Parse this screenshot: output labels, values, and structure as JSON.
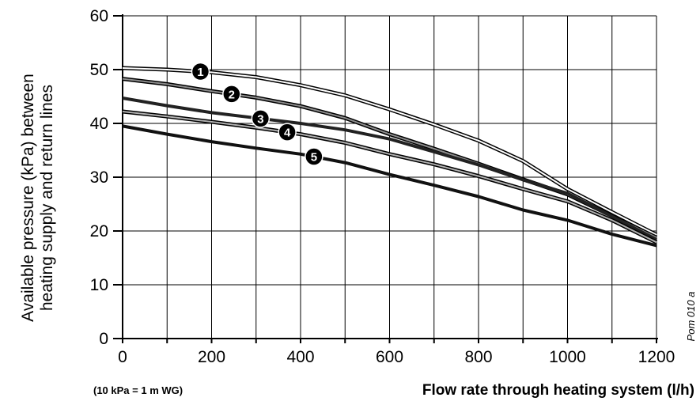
{
  "chart_data": {
    "type": "line",
    "title": "",
    "xlabel": "Flow rate through heating system (l/h)",
    "ylabel_lines": [
      "Available pressure (kPa) between",
      "heating supply and return lines"
    ],
    "note": "(10 kPa = 1 m WG)",
    "reference": "Pom 010 a",
    "xlim": [
      0,
      1200
    ],
    "ylim": [
      0,
      60
    ],
    "grid": true,
    "x_ticks": [
      0,
      200,
      400,
      600,
      800,
      1000,
      1200
    ],
    "y_ticks": [
      0,
      10,
      20,
      30,
      40,
      50,
      60
    ],
    "x": [
      0,
      100,
      200,
      300,
      400,
      500,
      600,
      700,
      800,
      900,
      1000,
      1100,
      1200
    ],
    "series": [
      {
        "marker": "1",
        "values": [
          50.3,
          50.0,
          49.5,
          48.6,
          47.1,
          45.2,
          42.6,
          39.8,
          36.8,
          33.0,
          27.8,
          23.5,
          19.3
        ]
      },
      {
        "marker": "2",
        "values": [
          48.3,
          47.3,
          46.0,
          44.8,
          43.2,
          41.0,
          38.0,
          35.3,
          32.5,
          29.6,
          26.8,
          22.8,
          18.8
        ]
      },
      {
        "marker": "3",
        "values": [
          44.7,
          43.3,
          42.0,
          41.0,
          40.0,
          38.8,
          37.1,
          34.7,
          32.3,
          29.5,
          27.0,
          22.7,
          18.4
        ]
      },
      {
        "marker": "4",
        "values": [
          42.2,
          41.3,
          40.3,
          39.2,
          38.0,
          36.4,
          34.3,
          32.4,
          30.2,
          27.8,
          25.5,
          22.0,
          17.9
        ]
      },
      {
        "marker": "5",
        "values": [
          39.5,
          38.0,
          36.6,
          35.4,
          34.3,
          32.7,
          30.5,
          28.5,
          26.4,
          23.9,
          22.0,
          19.4,
          17.3
        ]
      }
    ],
    "markers": [
      {
        "label": "1",
        "series": 0,
        "x": 175
      },
      {
        "label": "2",
        "series": 1,
        "x": 245
      },
      {
        "label": "3",
        "series": 2,
        "x": 310
      },
      {
        "label": "4",
        "series": 3,
        "x": 370
      },
      {
        "label": "5",
        "series": 4,
        "x": 430
      }
    ]
  }
}
